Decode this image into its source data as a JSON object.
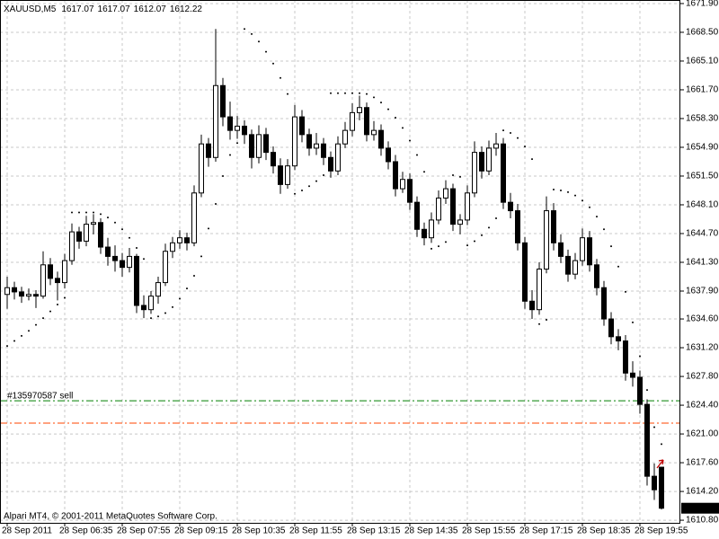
{
  "chart_data": {
    "type": "candlestick",
    "symbol": "XAUUSD,M5",
    "copyright": "Alpari MT4, © 2001-2011 MetaQuotes Software Corp.",
    "categories": [
      "28 Sep 2011",
      null,
      null,
      null,
      null,
      null,
      null,
      null,
      "28 Sep 06:35",
      null,
      null,
      null,
      null,
      null,
      null,
      null,
      "28 Sep 07:55",
      null,
      null,
      null,
      null,
      null,
      null,
      null,
      "28 Sep 09:15",
      null,
      null,
      null,
      null,
      null,
      null,
      null,
      "28 Sep 10:35",
      null,
      null,
      null,
      null,
      null,
      null,
      null,
      "28 Sep 11:55",
      null,
      null,
      null,
      null,
      null,
      null,
      null,
      "28 Sep 13:15",
      null,
      null,
      null,
      null,
      null,
      null,
      null,
      "28 Sep 14:35",
      null,
      null,
      null,
      null,
      null,
      null,
      null,
      "28 Sep 15:55",
      null,
      null,
      null,
      null,
      null,
      null,
      null,
      "28 Sep 17:15",
      null,
      null,
      null,
      null,
      null,
      null,
      null,
      "28 Sep 18:35",
      null,
      null,
      null,
      null,
      null,
      null,
      null,
      "28 Sep 19:55",
      null,
      null,
      null
    ],
    "candles": [
      [
        1637.5,
        1639.6,
        1635.8,
        1638.3
      ],
      [
        1638.3,
        1639.0,
        1636.9,
        1637.8
      ],
      [
        1637.8,
        1638.4,
        1636.5,
        1637.3
      ],
      [
        1637.3,
        1638.2,
        1636.8,
        1637.5
      ],
      [
        1637.5,
        1638.0,
        1635.9,
        1637.3
      ],
      [
        1637.3,
        1642.6,
        1637.0,
        1641.0
      ],
      [
        1641.0,
        1641.8,
        1638.6,
        1639.4
      ],
      [
        1639.4,
        1640.2,
        1636.8,
        1638.9
      ],
      [
        1638.9,
        1642.3,
        1638.2,
        1641.5
      ],
      [
        1641.5,
        1645.9,
        1641.0,
        1644.9
      ],
      [
        1644.9,
        1645.5,
        1642.9,
        1643.8
      ],
      [
        1643.8,
        1646.8,
        1643.2,
        1645.8
      ],
      [
        1645.8,
        1647.0,
        1644.6,
        1646.0
      ],
      [
        1646.0,
        1646.5,
        1642.3,
        1643.1
      ],
      [
        1643.1,
        1644.2,
        1640.9,
        1642.0
      ],
      [
        1642.0,
        1643.3,
        1640.2,
        1641.5
      ],
      [
        1641.5,
        1642.4,
        1639.6,
        1640.7
      ],
      [
        1640.7,
        1643.0,
        1640.1,
        1642.0
      ],
      [
        1642.0,
        1642.3,
        1635.3,
        1636.2
      ],
      [
        1636.2,
        1637.4,
        1634.7,
        1635.7
      ],
      [
        1635.7,
        1637.9,
        1635.2,
        1637.3
      ],
      [
        1637.3,
        1639.6,
        1636.4,
        1638.9
      ],
      [
        1638.9,
        1643.5,
        1638.5,
        1642.6
      ],
      [
        1642.6,
        1644.3,
        1641.8,
        1643.6
      ],
      [
        1643.6,
        1645.1,
        1642.9,
        1644.2
      ],
      [
        1644.2,
        1644.8,
        1642.7,
        1643.6
      ],
      [
        1643.6,
        1650.4,
        1643.2,
        1649.5
      ],
      [
        1649.5,
        1656.4,
        1649.0,
        1655.3
      ],
      [
        1655.3,
        1656.0,
        1652.6,
        1653.7
      ],
      [
        1653.7,
        1668.9,
        1653.2,
        1662.2
      ],
      [
        1662.2,
        1663.1,
        1657.4,
        1658.5
      ],
      [
        1658.5,
        1660.3,
        1655.8,
        1656.9
      ],
      [
        1656.9,
        1658.6,
        1655.9,
        1657.4
      ],
      [
        1657.4,
        1658.1,
        1655.3,
        1656.4
      ],
      [
        1656.4,
        1657.0,
        1652.4,
        1653.7
      ],
      [
        1653.7,
        1657.5,
        1653.0,
        1656.4
      ],
      [
        1656.4,
        1657.2,
        1653.4,
        1654.3
      ],
      [
        1654.3,
        1655.0,
        1651.8,
        1652.7
      ],
      [
        1652.7,
        1653.6,
        1649.4,
        1650.5
      ],
      [
        1650.5,
        1653.5,
        1650.0,
        1652.7
      ],
      [
        1652.7,
        1659.9,
        1652.2,
        1658.5
      ],
      [
        1658.5,
        1659.3,
        1655.5,
        1656.4
      ],
      [
        1656.4,
        1657.1,
        1653.9,
        1654.8
      ],
      [
        1654.8,
        1656.6,
        1654.0,
        1655.3
      ],
      [
        1655.3,
        1656.0,
        1652.8,
        1653.7
      ],
      [
        1653.7,
        1654.4,
        1651.3,
        1652.1
      ],
      [
        1652.1,
        1656.2,
        1651.6,
        1655.3
      ],
      [
        1655.3,
        1657.9,
        1654.8,
        1656.9
      ],
      [
        1656.9,
        1660.1,
        1656.2,
        1659.0
      ],
      [
        1659.0,
        1661.0,
        1658.1,
        1659.6
      ],
      [
        1659.6,
        1660.2,
        1655.6,
        1656.4
      ],
      [
        1656.4,
        1658.0,
        1655.7,
        1656.9
      ],
      [
        1656.9,
        1657.6,
        1653.9,
        1654.8
      ],
      [
        1654.8,
        1655.6,
        1652.3,
        1653.2
      ],
      [
        1653.2,
        1654.0,
        1649.1,
        1650.0
      ],
      [
        1650.0,
        1652.0,
        1649.5,
        1651.1
      ],
      [
        1651.1,
        1651.8,
        1647.5,
        1648.4
      ],
      [
        1648.4,
        1649.1,
        1644.3,
        1645.2
      ],
      [
        1645.2,
        1646.0,
        1643.3,
        1644.2
      ],
      [
        1644.2,
        1647.2,
        1643.6,
        1646.3
      ],
      [
        1646.3,
        1649.8,
        1645.8,
        1648.9
      ],
      [
        1648.9,
        1651.0,
        1648.2,
        1650.0
      ],
      [
        1650.0,
        1650.6,
        1645.0,
        1645.8
      ],
      [
        1645.8,
        1647.0,
        1644.6,
        1646.3
      ],
      [
        1646.3,
        1650.4,
        1645.7,
        1649.5
      ],
      [
        1649.5,
        1655.6,
        1649.0,
        1654.3
      ],
      [
        1654.3,
        1655.0,
        1651.2,
        1652.1
      ],
      [
        1652.1,
        1655.7,
        1651.6,
        1654.8
      ],
      [
        1654.8,
        1656.6,
        1653.9,
        1655.3
      ],
      [
        1655.3,
        1656.0,
        1647.6,
        1648.4
      ],
      [
        1648.4,
        1649.5,
        1646.5,
        1647.4
      ],
      [
        1647.4,
        1648.2,
        1642.7,
        1643.6
      ],
      [
        1643.6,
        1644.3,
        1635.8,
        1636.7
      ],
      [
        1636.7,
        1638.0,
        1634.6,
        1635.7
      ],
      [
        1635.7,
        1641.3,
        1635.1,
        1640.5
      ],
      [
        1640.5,
        1649.1,
        1640.0,
        1647.4
      ],
      [
        1647.4,
        1648.3,
        1642.7,
        1643.6
      ],
      [
        1643.6,
        1644.6,
        1641.2,
        1642.0
      ],
      [
        1642.0,
        1642.8,
        1639.0,
        1639.9
      ],
      [
        1639.9,
        1642.4,
        1639.3,
        1641.5
      ],
      [
        1641.5,
        1645.3,
        1640.9,
        1644.2
      ],
      [
        1644.2,
        1645.0,
        1640.2,
        1641.0
      ],
      [
        1641.0,
        1641.7,
        1637.4,
        1638.3
      ],
      [
        1638.3,
        1639.1,
        1633.8,
        1634.6
      ],
      [
        1634.6,
        1635.4,
        1631.6,
        1632.5
      ],
      [
        1632.5,
        1633.4,
        1630.9,
        1632.0
      ],
      [
        1632.0,
        1632.7,
        1627.3,
        1628.2
      ],
      [
        1628.2,
        1629.6,
        1626.6,
        1627.7
      ],
      [
        1627.7,
        1628.5,
        1623.4,
        1624.5
      ],
      [
        1624.5,
        1625.1,
        1614.9,
        1616.0
      ],
      [
        1616.0,
        1617.5,
        1613.2,
        1614.4
      ],
      [
        1617.07,
        1617.07,
        1612.07,
        1612.22
      ]
    ],
    "sar": [
      1631.4,
      1632.0,
      1632.6,
      1633.2,
      1633.9,
      1634.7,
      1635.5,
      1636.3,
      1637.1,
      1647.2,
      1647.2,
      1647.2,
      1647.2,
      1647.0,
      1646.6,
      1646.0,
      1645.2,
      1644.2,
      1643.0,
      1641.7,
      1634.7,
      1634.9,
      1635.3,
      1636.0,
      1637.0,
      1638.2,
      1639.7,
      1642.0,
      1645.3,
      1648.2,
      1651.5,
      1654.0,
      1655.4,
      1668.9,
      1668.3,
      1667.4,
      1666.2,
      1664.8,
      1663.1,
      1661.2,
      1649.4,
      1649.8,
      1650.3,
      1650.9,
      1651.6,
      1661.3,
      1661.3,
      1661.3,
      1661.3,
      1661.3,
      1661.2,
      1660.8,
      1660.2,
      1659.4,
      1658.4,
      1657.2,
      1655.7,
      1654.0,
      1652.0,
      1642.9,
      1643.2,
      1643.7,
      1651.6,
      1651.4,
      1643.3,
      1643.8,
      1644.5,
      1645.4,
      1646.5,
      1656.9,
      1656.6,
      1656.0,
      1655.0,
      1653.5,
      1634.0,
      1634.5,
      1649.9,
      1649.8,
      1649.6,
      1649.2,
      1648.6,
      1647.8,
      1646.7,
      1645.2,
      1643.2,
      1640.8,
      1637.8,
      1634.2,
      1630.2,
      1626.2,
      1621.8,
      1619.8
    ],
    "levels": [
      {
        "value": 1624.93,
        "color": "#008000",
        "label": "#135970587 sell"
      },
      {
        "value": 1622.28,
        "color": "#ff4500"
      }
    ],
    "ylim": [
      1610.49,
      1672.32
    ],
    "yticks": [
      {
        "value": 1671.9,
        "label": "1671.90"
      },
      {
        "value": 1668.5,
        "label": "1668.50"
      },
      {
        "value": 1665.1,
        "label": "1665.10"
      },
      {
        "value": 1661.7,
        "label": "1661.70"
      },
      {
        "value": 1658.3,
        "label": "1658.30"
      },
      {
        "value": 1654.9,
        "label": "1654.90"
      },
      {
        "value": 1651.5,
        "label": "1651.50"
      },
      {
        "value": 1648.1,
        "label": "1648.10"
      },
      {
        "value": 1644.7,
        "label": "1644.70"
      },
      {
        "value": 1641.3,
        "label": "1641.30"
      },
      {
        "value": 1637.9,
        "label": "1637.90"
      },
      {
        "value": 1634.6,
        "label": "1634.60"
      },
      {
        "value": 1631.2,
        "label": "1631.20"
      },
      {
        "value": 1627.8,
        "label": "1627.80"
      },
      {
        "value": 1624.4,
        "label": "1624.40"
      },
      {
        "value": 1621.0,
        "label": "1621.00"
      },
      {
        "value": 1617.6,
        "label": "1617.60"
      },
      {
        "value": 1614.2,
        "label": "1614.20"
      },
      {
        "value": 1610.8,
        "label": "1610.80"
      }
    ],
    "grid": true,
    "bull_color": "#ffffff",
    "bear_color": "#000000",
    "line_color": "#000000",
    "sar_color": "#000000",
    "grid_color": "#c8c8c8"
  }
}
